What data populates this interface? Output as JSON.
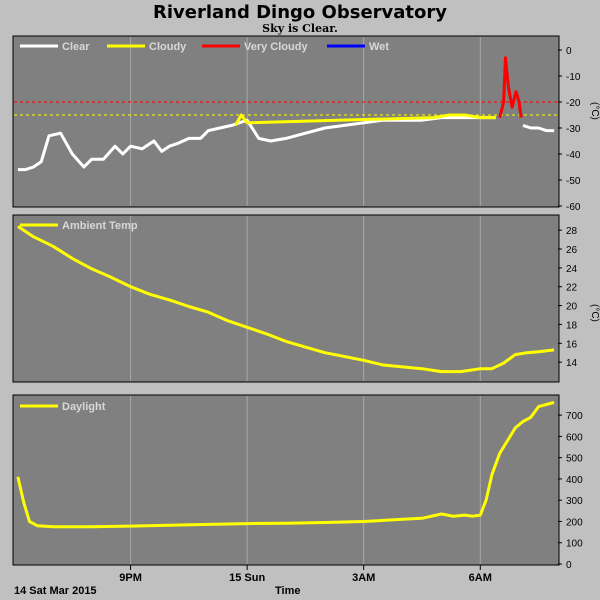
{
  "title": "Riverland Dingo Observatory",
  "subtitle": "Sky is Clear.",
  "colors": {
    "clear": "#ffffff",
    "cloudy": "#ffff00",
    "very_cloudy": "#ff0000",
    "wet": "#0000ff",
    "panel": "#808080",
    "grid": "#a0a0a0"
  },
  "chart_data": [
    {
      "type": "line",
      "ylabel": "(°C)",
      "ylim": [
        -60,
        5
      ],
      "yticks": [
        0,
        -10,
        -20,
        -30,
        -40,
        -50,
        -60
      ],
      "legend": [
        "Clear",
        "Cloudy",
        "Very Cloudy",
        "Wet"
      ],
      "series": [
        {
          "name": "Clear",
          "x": [
            18.1,
            18.3,
            18.5,
            18.7,
            18.9,
            19.2,
            19.5,
            19.8,
            20.0,
            20.3,
            20.6,
            20.8,
            21.0,
            21.3,
            21.6,
            21.8,
            22.0,
            22.2,
            22.5,
            22.8,
            23.0,
            23.3,
            23.6,
            23.8,
            24.0,
            24.3,
            24.6,
            25.0,
            25.5,
            26.0,
            26.5,
            27.0,
            27.5,
            28.0,
            28.5,
            29.0,
            29.5,
            30.0,
            30.4
          ],
          "y": [
            -46,
            -46,
            -45,
            -43,
            -33,
            -32,
            -40,
            -45,
            -42,
            -42,
            -37,
            -40,
            -37,
            -38,
            -35,
            -39,
            -37,
            -36,
            -34,
            -34,
            -31,
            -30,
            -29,
            -28,
            -27,
            -34,
            -35,
            -34,
            -32,
            -30,
            -29,
            -28,
            -27,
            -27,
            -27,
            -26,
            -26,
            -26,
            -26
          ]
        },
        {
          "name": "Cloudy",
          "x": [
            23.7,
            23.85,
            24.0,
            28.8,
            29.2,
            29.6,
            30.0,
            30.4
          ],
          "y": [
            -29,
            -25,
            -28,
            -26,
            -25,
            -25,
            -26,
            -26
          ]
        },
        {
          "name": "Very Cloudy",
          "x": [
            30.5,
            30.6,
            30.65,
            30.72,
            30.82,
            30.92,
            31.0,
            31.05
          ],
          "y": [
            -26,
            -20,
            -3,
            -14,
            -22,
            -16,
            -20,
            -26
          ]
        },
        {
          "name": "Clear",
          "x": [
            31.1,
            31.3,
            31.5,
            31.7,
            31.9
          ],
          "y": [
            -29,
            -30,
            -30,
            -31,
            -31
          ]
        }
      ]
    },
    {
      "type": "line",
      "title": "Ambient Temp",
      "ylabel": "(°C)",
      "ylim": [
        12,
        29.5
      ],
      "yticks": [
        28,
        26,
        24,
        22,
        20,
        18,
        16,
        14
      ],
      "series": [
        {
          "name": "Ambient Temp",
          "x": [
            18.1,
            18.5,
            19.0,
            19.5,
            20.0,
            20.5,
            21.0,
            21.5,
            22.0,
            22.5,
            23.0,
            23.5,
            24.0,
            24.5,
            25.0,
            25.5,
            26.0,
            26.5,
            27.0,
            27.5,
            28.0,
            28.5,
            29.0,
            29.5,
            30.0,
            30.3,
            30.6,
            30.9,
            31.2,
            31.5,
            31.9
          ],
          "y": [
            28.4,
            27.3,
            26.3,
            25.0,
            23.9,
            23.0,
            22.0,
            21.2,
            20.6,
            19.9,
            19.3,
            18.4,
            17.7,
            17.0,
            16.2,
            15.6,
            15.0,
            14.6,
            14.2,
            13.7,
            13.5,
            13.3,
            13.0,
            13.0,
            13.3,
            13.3,
            13.9,
            14.8,
            15.0,
            15.1,
            15.3
          ]
        }
      ]
    },
    {
      "type": "line",
      "title": "Daylight",
      "ylim": [
        0,
        790
      ],
      "yticks": [
        700,
        600,
        500,
        400,
        300,
        200,
        100,
        0
      ],
      "series": [
        {
          "name": "Daylight",
          "x": [
            18.1,
            18.25,
            18.4,
            18.6,
            19.0,
            20.0,
            21.0,
            22.0,
            23.0,
            24.0,
            25.0,
            26.0,
            27.0,
            28.0,
            28.5,
            29.0,
            29.3,
            29.6,
            29.8,
            30.0,
            30.15,
            30.3,
            30.5,
            30.7,
            30.9,
            31.1,
            31.3,
            31.5,
            31.7,
            31.9
          ],
          "y": [
            410,
            290,
            200,
            180,
            175,
            175,
            178,
            182,
            186,
            190,
            192,
            195,
            200,
            210,
            215,
            235,
            225,
            230,
            225,
            230,
            300,
            420,
            520,
            580,
            640,
            670,
            690,
            740,
            750,
            760
          ]
        }
      ]
    }
  ],
  "x_axis": {
    "ticks": [
      {
        "x": 21,
        "label": "9PM"
      },
      {
        "x": 24,
        "label": "15 Sun"
      },
      {
        "x": 27,
        "label": "3AM"
      },
      {
        "x": 30,
        "label": "6AM"
      }
    ],
    "date_label": "14 Sat Mar 2015",
    "label": "Time"
  }
}
